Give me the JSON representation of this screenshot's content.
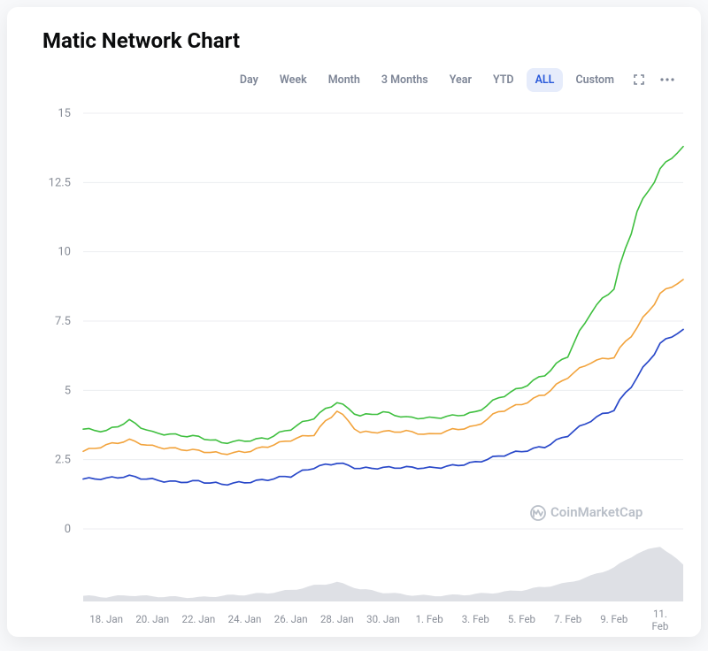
{
  "title": "Matic Network Chart",
  "controls": {
    "ranges": [
      "Day",
      "Week",
      "Month",
      "3 Months",
      "Year",
      "YTD",
      "ALL",
      "Custom"
    ],
    "active_range_index": 6
  },
  "watermark": {
    "text": "CoinMarketCap",
    "color": "#b9bfc8"
  },
  "chart": {
    "type": "line",
    "background_color": "#ffffff",
    "grid_color": "#eceef1",
    "label_color": "#8a8f99",
    "label_fontsize": 13,
    "xlabel_fontsize": 11.5,
    "y": {
      "min": 0,
      "max": 15,
      "tick_step": 2.5,
      "ticks": [
        0,
        2.5,
        5,
        7.5,
        10,
        12.5,
        15
      ]
    },
    "x": {
      "min": 0,
      "max": 26,
      "ticks": [
        {
          "i": 1,
          "label": "18. Jan"
        },
        {
          "i": 3,
          "label": "20. Jan"
        },
        {
          "i": 5,
          "label": "22. Jan"
        },
        {
          "i": 7,
          "label": "24. Jan"
        },
        {
          "i": 9,
          "label": "26. Jan"
        },
        {
          "i": 11,
          "label": "28. Jan"
        },
        {
          "i": 13,
          "label": "30. Jan"
        },
        {
          "i": 15,
          "label": "1. Feb"
        },
        {
          "i": 17,
          "label": "3. Feb"
        },
        {
          "i": 19,
          "label": "5. Feb"
        },
        {
          "i": 21,
          "label": "7. Feb"
        },
        {
          "i": 23,
          "label": "9. Feb"
        },
        {
          "i": 25,
          "label": "11. Feb"
        }
      ]
    },
    "series": [
      {
        "name": "green",
        "color": "#3fbf3f",
        "line_width": 1.6,
        "values": [
          3.6,
          3.5,
          3.9,
          3.5,
          3.4,
          3.3,
          3.1,
          3.2,
          3.3,
          3.6,
          4.0,
          4.6,
          4.1,
          4.2,
          4.0,
          4.0,
          4.1,
          4.2,
          4.7,
          5.1,
          5.6,
          6.3,
          7.8,
          8.7,
          11.5,
          13.0,
          13.8
        ]
      },
      {
        "name": "orange",
        "color": "#f2a33c",
        "line_width": 1.6,
        "values": [
          2.8,
          3.0,
          3.2,
          3.0,
          2.9,
          2.8,
          2.7,
          2.8,
          3.0,
          3.2,
          3.4,
          4.3,
          3.5,
          3.5,
          3.5,
          3.4,
          3.6,
          3.7,
          4.2,
          4.5,
          4.9,
          5.5,
          6.0,
          6.2,
          7.3,
          8.5,
          9.0
        ]
      },
      {
        "name": "blue",
        "color": "#2a49c9",
        "line_width": 1.7,
        "values": [
          1.8,
          1.8,
          1.9,
          1.8,
          1.7,
          1.7,
          1.6,
          1.7,
          1.8,
          1.9,
          2.2,
          2.4,
          2.2,
          2.2,
          2.2,
          2.2,
          2.3,
          2.4,
          2.6,
          2.8,
          3.0,
          3.4,
          3.9,
          4.3,
          5.5,
          6.7,
          7.2
        ]
      }
    ],
    "volume": {
      "color": "#c8ccd3",
      "max": 10,
      "values": [
        1.0,
        0.8,
        1.1,
        0.9,
        0.8,
        0.7,
        1.0,
        1.2,
        1.5,
        2.0,
        2.8,
        3.4,
        2.2,
        1.6,
        1.2,
        1.0,
        1.1,
        1.3,
        1.6,
        2.0,
        2.6,
        3.3,
        4.5,
        6.0,
        8.5,
        9.8,
        6.5
      ]
    }
  }
}
